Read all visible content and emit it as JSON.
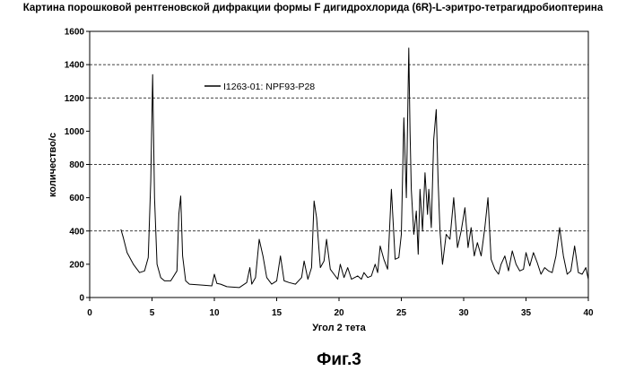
{
  "chart_data": {
    "type": "line",
    "title": "Картина порошковой рентгеновской дифракции формы F дигидрохлорида (6R)-L-эритро-тетрагидробиоптерина",
    "xlabel": "Угол 2 тета",
    "ylabel": "количество/с",
    "xlim": [
      0,
      40
    ],
    "ylim": [
      0,
      1600
    ],
    "xticks": [
      "0",
      "5",
      "10",
      "15",
      "20",
      "25",
      "30",
      "35",
      "40"
    ],
    "yticks": [
      "0",
      "200",
      "400",
      "600",
      "800",
      "1000",
      "1200",
      "1400",
      "1600"
    ],
    "grid": "horizontal dashed at 400, 800, 1200, 1400",
    "legend_position": "top-left",
    "series": [
      {
        "name": "I1263-01: NPF93-P28",
        "color": "#000000",
        "x": [
          2.5,
          2.7,
          3.0,
          3.5,
          4.0,
          4.4,
          4.7,
          4.9,
          5.05,
          5.2,
          5.4,
          5.7,
          6.0,
          6.5,
          7.0,
          7.15,
          7.3,
          7.45,
          7.7,
          8.0,
          9.0,
          9.8,
          10.0,
          10.2,
          10.5,
          11.0,
          12.0,
          12.6,
          12.85,
          13.0,
          13.3,
          13.6,
          13.9,
          14.2,
          14.6,
          15.0,
          15.3,
          15.6,
          16.0,
          16.5,
          17.0,
          17.2,
          17.5,
          17.8,
          18.0,
          18.2,
          18.5,
          18.8,
          19.0,
          19.3,
          19.6,
          19.9,
          20.1,
          20.4,
          20.7,
          21.0,
          21.5,
          21.8,
          22.0,
          22.3,
          22.6,
          22.9,
          23.1,
          23.3,
          23.6,
          23.9,
          24.0,
          24.2,
          24.5,
          24.8,
          25.0,
          25.2,
          25.4,
          25.6,
          25.7,
          25.8,
          26.0,
          26.2,
          26.35,
          26.5,
          26.7,
          26.9,
          27.1,
          27.2,
          27.4,
          27.6,
          27.8,
          27.95,
          28.1,
          28.3,
          28.6,
          28.9,
          29.2,
          29.5,
          29.8,
          30.1,
          30.35,
          30.6,
          30.85,
          31.1,
          31.4,
          31.7,
          31.95,
          32.2,
          32.5,
          32.8,
          33.0,
          33.3,
          33.6,
          33.9,
          34.2,
          34.5,
          34.8,
          35.0,
          35.3,
          35.6,
          35.9,
          36.2,
          36.5,
          36.8,
          37.1,
          37.4,
          37.7,
          38.0,
          38.3,
          38.6,
          38.9,
          39.2,
          39.5,
          39.8,
          40.0
        ],
        "y": [
          410,
          360,
          270,
          200,
          150,
          160,
          240,
          700,
          1340,
          600,
          200,
          120,
          100,
          100,
          160,
          500,
          610,
          250,
          100,
          80,
          75,
          70,
          140,
          85,
          80,
          65,
          60,
          90,
          180,
          80,
          120,
          350,
          250,
          120,
          80,
          100,
          250,
          100,
          90,
          80,
          120,
          220,
          110,
          180,
          580,
          480,
          180,
          220,
          350,
          170,
          140,
          110,
          200,
          120,
          180,
          110,
          130,
          110,
          150,
          120,
          130,
          200,
          150,
          310,
          230,
          170,
          320,
          650,
          230,
          240,
          380,
          1080,
          600,
          1500,
          1000,
          650,
          380,
          520,
          260,
          650,
          400,
          750,
          500,
          650,
          420,
          950,
          1130,
          700,
          400,
          200,
          380,
          350,
          600,
          300,
          400,
          540,
          300,
          420,
          250,
          330,
          250,
          420,
          600,
          230,
          170,
          140,
          200,
          250,
          160,
          280,
          200,
          160,
          170,
          270,
          190,
          270,
          210,
          140,
          180,
          160,
          150,
          250,
          420,
          250,
          140,
          160,
          310,
          150,
          140,
          180,
          110
        ]
      }
    ]
  },
  "caption": "Фиг.3"
}
